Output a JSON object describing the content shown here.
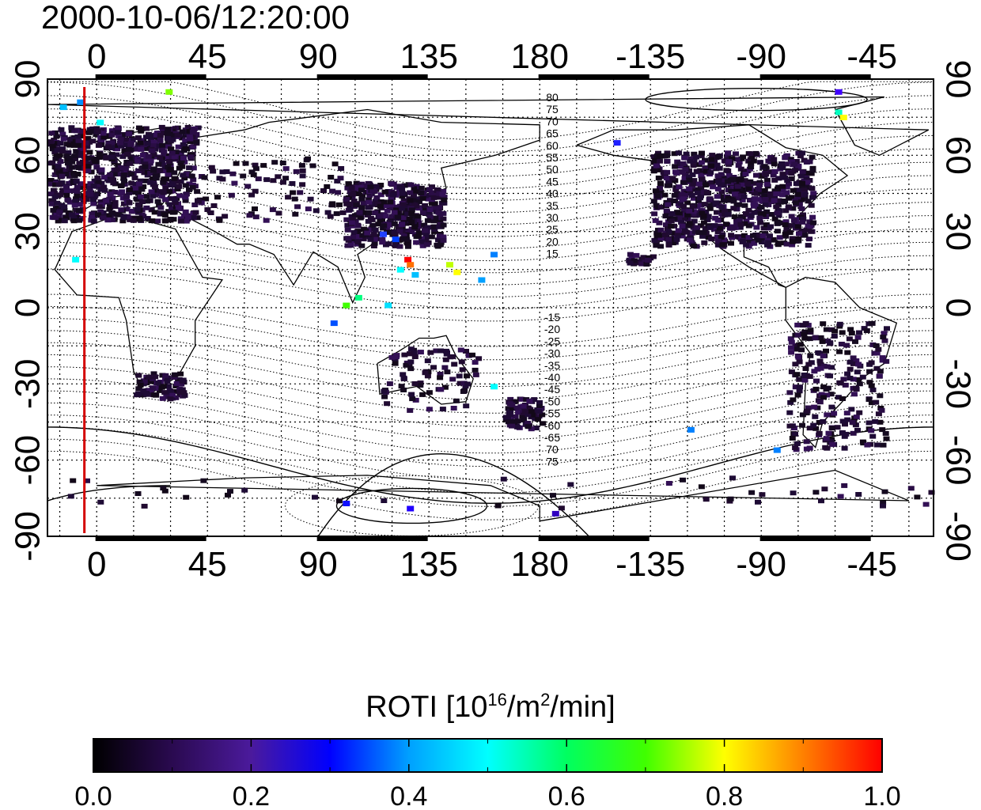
{
  "title": "2000-10-06/12:20:00",
  "map": {
    "lon_ticks": [
      "0",
      "45",
      "90",
      "135",
      "180",
      "-135",
      "-90",
      "-45"
    ],
    "lon_values": [
      0,
      45,
      90,
      135,
      180,
      225,
      270,
      315
    ],
    "lat_ticks_left": [
      "90",
      "60",
      "30",
      "0",
      "-30",
      "-60",
      "-90"
    ],
    "lat_ticks_right": [
      "90",
      "60",
      "30",
      "0",
      "-30",
      "-60",
      "-90"
    ],
    "lat_values": [
      90,
      60,
      30,
      0,
      -30,
      -60,
      -90
    ],
    "lon_range": [
      -20,
      340
    ],
    "lat_range": [
      -90,
      90
    ],
    "marker_line_lon": -5,
    "marker_line_color": "#d40000",
    "contour_labels_north": [
      "80",
      "75",
      "70",
      "65",
      "60",
      "55",
      "50",
      "45",
      "40",
      "35",
      "30",
      "25",
      "20",
      "15"
    ],
    "contour_labels_south": [
      "-15",
      "-20",
      "-25",
      "-30",
      "-35",
      "-40",
      "-45",
      "-50",
      "-55",
      "-60",
      "-65",
      "70",
      "75"
    ]
  },
  "colorbar": {
    "title_main": "ROTI  [10",
    "title_sup1": "16",
    "title_mid": "/m",
    "title_sup2": "2",
    "title_end": "/min]",
    "tick_labels": [
      "0.0",
      "0.2",
      "0.4",
      "0.6",
      "0.8",
      "1.0"
    ],
    "range": [
      0,
      1
    ],
    "colors": [
      "#000000",
      "#2a0a50",
      "#4b1a9c",
      "#0000ff",
      "#00a0ff",
      "#00ffff",
      "#00ff60",
      "#40ff00",
      "#ffff00",
      "#ff8000",
      "#ff0000"
    ]
  }
}
